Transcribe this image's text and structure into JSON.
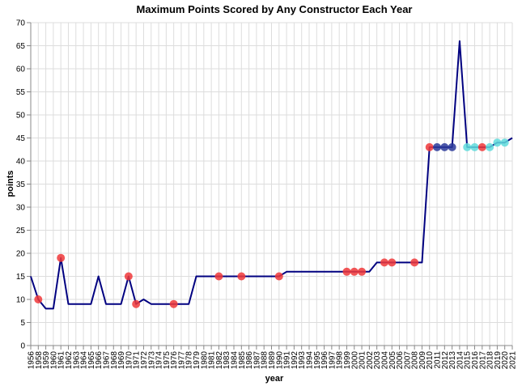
{
  "chart_data": {
    "type": "line",
    "title": "Maximum Points Scored by Any Constructor Each Year",
    "xlabel": "year",
    "ylabel": "points",
    "ylim": [
      0,
      70
    ],
    "yticks": [
      0,
      5,
      10,
      15,
      20,
      25,
      30,
      35,
      40,
      45,
      50,
      55,
      60,
      65,
      70
    ],
    "grid": true,
    "line_color": "#000080",
    "x": [
      "1956",
      "1958",
      "1959",
      "1960",
      "1961",
      "1962",
      "1963",
      "1964",
      "1965",
      "1966",
      "1967",
      "1968",
      "1969",
      "1970",
      "1971",
      "1972",
      "1973",
      "1974",
      "1975",
      "1976",
      "1977",
      "1978",
      "1979",
      "1980",
      "1981",
      "1982",
      "1983",
      "1984",
      "1985",
      "1986",
      "1987",
      "1988",
      "1989",
      "1990",
      "1991",
      "1992",
      "1993",
      "1994",
      "1995",
      "1996",
      "1997",
      "1998",
      "1999",
      "2000",
      "2001",
      "2002",
      "2003",
      "2004",
      "2005",
      "2006",
      "2007",
      "2008",
      "2009",
      "2010",
      "2011",
      "2012",
      "2013",
      "2014",
      "2015",
      "2016",
      "2017",
      "2018",
      "2019",
      "2020",
      "2021"
    ],
    "y": [
      15,
      10,
      8,
      8,
      19,
      9,
      9,
      9,
      9,
      15,
      9,
      9,
      9,
      15,
      9,
      10,
      9,
      9,
      9,
      9,
      9,
      9,
      15,
      15,
      15,
      15,
      15,
      15,
      15,
      15,
      15,
      15,
      15,
      15,
      16,
      16,
      16,
      16,
      16,
      16,
      16,
      16,
      16,
      16,
      16,
      16,
      18,
      18,
      18,
      18,
      18,
      18,
      18,
      43,
      43,
      43,
      43,
      66,
      43,
      43,
      43,
      43,
      44,
      44,
      45
    ],
    "points": [
      {
        "x": "1958",
        "y": 10,
        "color": "#f0383a"
      },
      {
        "x": "1961",
        "y": 19,
        "color": "#f0383a"
      },
      {
        "x": "1970",
        "y": 15,
        "color": "#f0383a"
      },
      {
        "x": "1971",
        "y": 9,
        "color": "#f0383a"
      },
      {
        "x": "1976",
        "y": 9,
        "color": "#f0383a"
      },
      {
        "x": "1982",
        "y": 15,
        "color": "#f0383a"
      },
      {
        "x": "1985",
        "y": 15,
        "color": "#f0383a"
      },
      {
        "x": "1990",
        "y": 15,
        "color": "#f0383a"
      },
      {
        "x": "1999",
        "y": 16,
        "color": "#f0383a"
      },
      {
        "x": "2000",
        "y": 16,
        "color": "#f0383a"
      },
      {
        "x": "2001",
        "y": 16,
        "color": "#f0383a"
      },
      {
        "x": "2004",
        "y": 18,
        "color": "#f0383a"
      },
      {
        "x": "2005",
        "y": 18,
        "color": "#f0383a"
      },
      {
        "x": "2008",
        "y": 18,
        "color": "#f0383a"
      },
      {
        "x": "2010",
        "y": 43,
        "color": "#f0383a"
      },
      {
        "x": "2011",
        "y": 43,
        "color": "#2b3a9a"
      },
      {
        "x": "2012",
        "y": 43,
        "color": "#2b3a9a"
      },
      {
        "x": "2013",
        "y": 43,
        "color": "#2b3a9a"
      },
      {
        "x": "2015",
        "y": 43,
        "color": "#60dcdc"
      },
      {
        "x": "2016",
        "y": 43,
        "color": "#60dcdc"
      },
      {
        "x": "2017",
        "y": 43,
        "color": "#f0383a"
      },
      {
        "x": "2018",
        "y": 43,
        "color": "#60dcdc"
      },
      {
        "x": "2019",
        "y": 44,
        "color": "#60dcdc"
      },
      {
        "x": "2020",
        "y": 44,
        "color": "#60dcdc"
      }
    ]
  }
}
